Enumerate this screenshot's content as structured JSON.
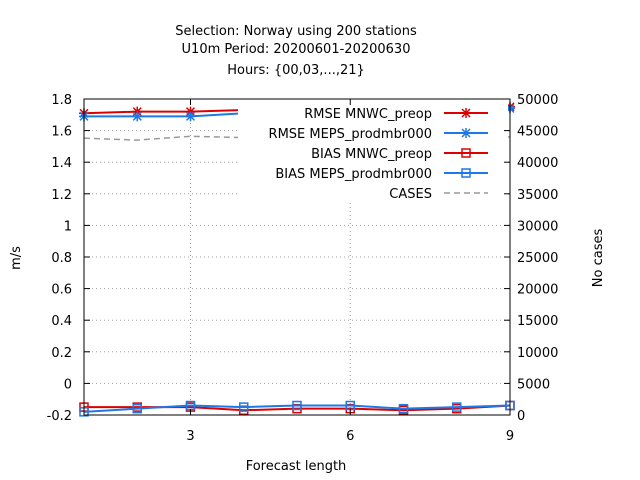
{
  "chart_data": {
    "type": "line",
    "title": [
      "Selection: Norway using   200 stations",
      "U10m   Period: 20200601-20200630",
      "Hours: {00,03,...,21}"
    ],
    "xlabel": "Forecast length",
    "ylabel": "m/s",
    "y2label": "No cases",
    "xlim": [
      1,
      9
    ],
    "ylim": [
      -0.2,
      1.8
    ],
    "y2lim": [
      0,
      50000
    ],
    "xticks": [
      3,
      6,
      9
    ],
    "yticks": [
      -0.2,
      0,
      0.2,
      0.4,
      0.6,
      0.8,
      1,
      1.2,
      1.4,
      1.6,
      1.8
    ],
    "y2ticks": [
      0,
      5000,
      10000,
      15000,
      20000,
      25000,
      30000,
      35000,
      40000,
      45000,
      50000
    ],
    "grid": true,
    "legend_position": "top-right",
    "x": [
      1,
      2,
      3,
      4,
      5,
      6,
      7,
      8,
      9
    ],
    "series": [
      {
        "name": "RMSE MNWC_preop",
        "axis": "y1",
        "color": "#dd0000",
        "marker": "star",
        "values": [
          1.71,
          1.72,
          1.72,
          1.73,
          1.73,
          1.73,
          1.74,
          1.74,
          1.75
        ]
      },
      {
        "name": "RMSE MEPS_prodmbr000",
        "axis": "y1",
        "color": "#1e78e6",
        "marker": "star",
        "values": [
          1.69,
          1.69,
          1.69,
          1.71,
          1.72,
          1.72,
          1.72,
          1.73,
          1.74
        ]
      },
      {
        "name": "BIAS MNWC_preop",
        "axis": "y1",
        "color": "#dd0000",
        "marker": "square",
        "values": [
          -0.15,
          -0.15,
          -0.15,
          -0.17,
          -0.16,
          -0.16,
          -0.17,
          -0.16,
          -0.14
        ]
      },
      {
        "name": "BIAS MEPS_prodmbr000",
        "axis": "y1",
        "color": "#1e78e6",
        "marker": "square",
        "values": [
          -0.18,
          -0.16,
          -0.14,
          -0.15,
          -0.14,
          -0.14,
          -0.16,
          -0.15,
          -0.14
        ]
      },
      {
        "name": "CASES",
        "axis": "y2",
        "color": "#999999",
        "marker": "none",
        "dashed": true,
        "values": [
          43800,
          43500,
          44100,
          43900,
          43700,
          43900,
          44000,
          43800,
          44000
        ]
      }
    ]
  }
}
